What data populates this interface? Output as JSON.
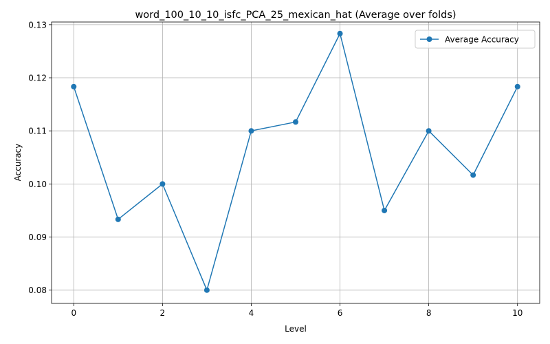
{
  "chart_data": {
    "type": "line",
    "title": "word_100_10_10_isfc_PCA_25_mexican_hat (Average over folds)",
    "xlabel": "Level",
    "ylabel": "Accuracy",
    "x": [
      0,
      1,
      2,
      3,
      4,
      5,
      6,
      7,
      8,
      9,
      10
    ],
    "series": [
      {
        "name": "Average Accuracy",
        "color": "#1f77b4",
        "values": [
          0.11833,
          0.09333,
          0.1,
          0.08,
          0.11,
          0.11167,
          0.12833,
          0.095,
          0.11,
          0.10167,
          0.11833
        ]
      }
    ],
    "xlim": [
      -0.5,
      10.5
    ],
    "ylim": [
      0.0775,
      0.1305
    ],
    "xticks": [
      0,
      2,
      4,
      6,
      8,
      10
    ],
    "xtick_labels": [
      "0",
      "2",
      "4",
      "6",
      "8",
      "10"
    ],
    "yticks": [
      0.08,
      0.09,
      0.1,
      0.11,
      0.12,
      0.13
    ],
    "ytick_labels": [
      "0.08",
      "0.09",
      "0.10",
      "0.11",
      "0.12",
      "0.13"
    ],
    "grid": true,
    "legend_position": "upper right"
  }
}
